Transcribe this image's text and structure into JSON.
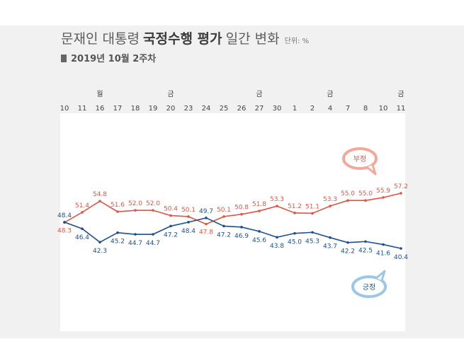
{
  "header": {
    "title_light": "문재인 대통령",
    "title_bold": "국정수행 평가",
    "title_light2": "일간 변화",
    "unit": "단위: %",
    "subtitle": "2019년 10월 2주차"
  },
  "colors": {
    "negative": "#e05545",
    "positive": "#1d4f8c",
    "negative_bubble": "#f3a89b",
    "positive_bubble": "#9cc7e6",
    "grid": "#dddddd"
  },
  "chart_data": {
    "type": "line",
    "title": "문재인 대통령 국정수행 평가 일간 변화",
    "unit": "단위: %",
    "categories": [
      "10",
      "11",
      "16",
      "17",
      "18",
      "19",
      "20",
      "23",
      "24",
      "25",
      "26",
      "27",
      "30",
      "1",
      "2",
      "4",
      "7",
      "8",
      "10",
      "11"
    ],
    "weekday_labels": [
      "",
      "",
      "월",
      "",
      "",
      "",
      "금",
      "",
      "",
      "",
      "",
      "금",
      "",
      "",
      "",
      "금",
      "",
      "",
      "",
      "금"
    ],
    "series": [
      {
        "name": "부정",
        "values": [
          48.3,
          51.4,
          54.8,
          51.6,
          52.0,
          52.0,
          50.4,
          50.1,
          47.8,
          50.1,
          50.8,
          51.8,
          53.3,
          51.2,
          51.1,
          53.3,
          55.0,
          55.0,
          55.9,
          57.2
        ]
      },
      {
        "name": "긍정",
        "values": [
          48.4,
          46.4,
          42.3,
          45.2,
          44.7,
          44.7,
          47.2,
          48.4,
          49.7,
          47.2,
          46.9,
          45.6,
          43.8,
          45.0,
          45.3,
          43.7,
          42.2,
          42.5,
          41.6,
          40.4
        ]
      }
    ],
    "grid": false,
    "legend": "bubbles"
  }
}
